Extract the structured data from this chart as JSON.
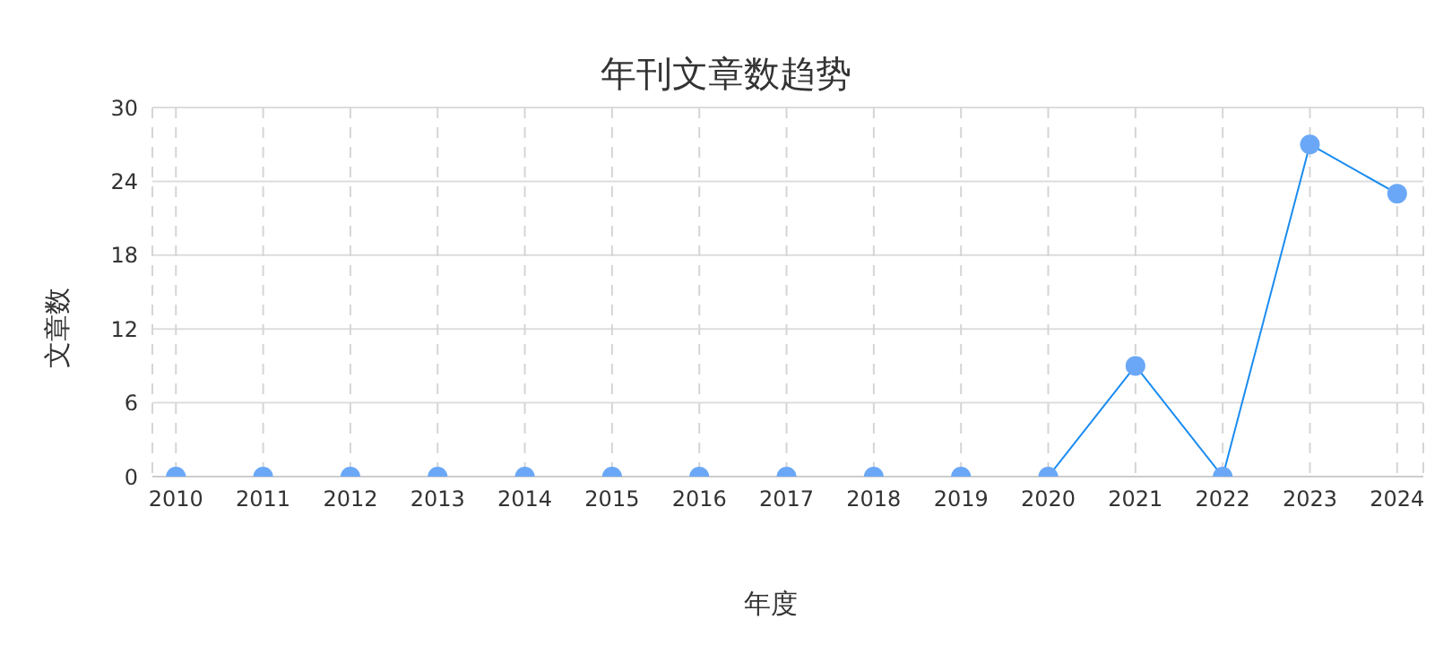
{
  "chart_data": {
    "type": "line",
    "title": "年刊文章数趋势",
    "xlabel": "年度",
    "ylabel": "文章数",
    "categories": [
      "2010",
      "2011",
      "2012",
      "2013",
      "2014",
      "2015",
      "2016",
      "2017",
      "2018",
      "2019",
      "2020",
      "2021",
      "2022",
      "2023",
      "2024"
    ],
    "series": [
      {
        "color": "#1a8cf0",
        "values": [
          0,
          0,
          0,
          0,
          0,
          0,
          0,
          0,
          0,
          0,
          0,
          9,
          0,
          27,
          23
        ]
      }
    ],
    "ylim": [
      0,
      30
    ],
    "yticks": [
      0,
      6,
      12,
      18,
      24,
      30
    ],
    "grid": true,
    "legend": false,
    "marker": "circle",
    "line_style": "solid"
  }
}
